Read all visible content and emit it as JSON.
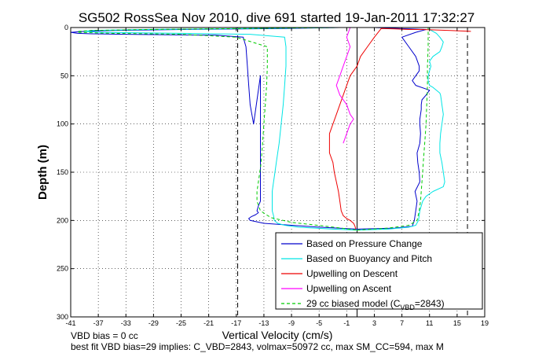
{
  "chart_data": {
    "type": "line",
    "title": "SG502 RossSea Nov 2010, dive 691 started 19-Jan-2011 17:32:27",
    "xlabel": "Vertical Velocity (cm/s)",
    "ylabel": "Depth (m)",
    "xlim": [
      -41,
      19
    ],
    "ylim": [
      0,
      300
    ],
    "y_reversed": true,
    "grid": true,
    "x_ticks": [
      -41,
      -37,
      -33,
      -29,
      -25,
      -21,
      -17,
      -13,
      -9,
      -5,
      -1,
      3,
      7,
      11,
      15,
      19
    ],
    "y_ticks": [
      0,
      50,
      100,
      150,
      200,
      250,
      300
    ],
    "vertical_lines": [
      {
        "x": -16.8,
        "style": "dashed",
        "color": "#000000"
      },
      {
        "x": 0.5,
        "style": "solid",
        "color": "#000000"
      },
      {
        "x": 16.5,
        "style": "dashed",
        "color": "#000000"
      }
    ],
    "legend_position": "bottom-right",
    "series": [
      {
        "name": "Based on Pressure Change",
        "color": "#0000cc",
        "style": "solid",
        "segments": [
          {
            "x": [
              -2,
              -10,
              -25,
              -35,
              -39,
              -41,
              -40,
              -38,
              -33,
              -20,
              -16,
              -15.6,
              -15.4,
              -15.2,
              -15,
              -14.5,
              -13.5,
              -13.5,
              -13.5,
              -13.5,
              -13.5,
              -13.5,
              -13.5,
              -13.5,
              -13.5,
              -13.5,
              -13.8,
              -14,
              -13.8,
              -14.2,
              -14.8,
              -15.2,
              -15,
              -13,
              -5,
              0.5
            ],
            "y": [
              0,
              1,
              2,
              3,
              4,
              5,
              6,
              6.5,
              7,
              8,
              10,
              20,
              40,
              60,
              80,
              100,
              50,
              70,
              90,
              110,
              130,
              150,
              160,
              170,
              175,
              180,
              185,
              190,
              192,
              194,
              196,
              198,
              200,
              203,
              207,
              209
            ]
          },
          {
            "x": [
              0.5,
              6,
              8.5,
              8.8,
              9,
              9.2,
              8.9,
              9.6,
              9.5,
              9.3,
              9.2,
              9.6,
              9.7,
              9.6,
              9.6,
              9.7,
              9.8,
              9.8,
              9.9,
              10.5,
              11,
              9,
              8.5,
              9,
              9.5,
              9.5,
              9,
              8,
              7,
              9,
              10.5,
              3
            ],
            "y": [
              209,
              208,
              206,
              200,
              190,
              180,
              170,
              160,
              150,
              140,
              130,
              120,
              110,
              100,
              95,
              90,
              85,
              80,
              75,
              70,
              65,
              60,
              55,
              50,
              45,
              40,
              30,
              20,
              10,
              5,
              2,
              0
            ]
          }
        ]
      },
      {
        "name": "Based on Buoyancy and Pitch",
        "color": "#00e5e5",
        "style": "solid",
        "segments": [
          {
            "x": [
              -2,
              -15,
              -30,
              -38,
              -39,
              -37,
              -25,
              -15,
              -10,
              -9.8,
              -9.8,
              -10,
              -10.2,
              -10.5,
              -10.8,
              -11.2,
              -11.4,
              -11.6,
              -11.8,
              -11.8,
              -11.8,
              -11.6,
              -11.5,
              -11,
              -10,
              -8,
              -3,
              0.5
            ],
            "y": [
              0,
              1,
              2,
              3,
              4,
              5,
              6,
              7,
              10,
              20,
              40,
              60,
              80,
              100,
              120,
              140,
              150,
              160,
              170,
              180,
              190,
              195,
              200,
              203,
              205,
              207,
              209,
              210
            ]
          },
          {
            "x": [
              0.5,
              5,
              8,
              9,
              9.4,
              9.6,
              10,
              10.5,
              11.5,
              13,
              13.2,
              13,
              12.8,
              12.5,
              12.5,
              12.6,
              12.8,
              13,
              12.8,
              12.7,
              12.6,
              12.5,
              12,
              11.5,
              11,
              10.8,
              10.8,
              11,
              11.2,
              11,
              11.5,
              12.5,
              12.8,
              13,
              12.5,
              12,
              11.5,
              11,
              11
            ],
            "y": [
              210,
              209,
              207,
              205,
              200,
              190,
              180,
              175,
              170,
              165,
              160,
              150,
              140,
              130,
              120,
              110,
              100,
              90,
              80,
              75,
              70,
              68,
              65,
              62,
              60,
              55,
              50,
              45,
              40,
              35,
              30,
              25,
              20,
              15,
              10,
              6,
              4,
              2,
              0
            ]
          }
        ]
      },
      {
        "name": "Upwelling on Descent",
        "color": "#ee0000",
        "style": "solid",
        "segments": [
          {
            "x": [
              17,
              14,
              12,
              10,
              8,
              6,
              4,
              3,
              2,
              1,
              0.5,
              -0.5,
              -1,
              -1.5,
              -2,
              -2.5,
              -3,
              -3.5,
              -3.5,
              -3.5,
              -3,
              -2.8,
              -2.5,
              -2.2,
              -2,
              -1.8,
              -1.5,
              -1,
              -0.5,
              0,
              0.2,
              0.3
            ],
            "y": [
              4,
              3,
              2.5,
              2,
              2,
              1.5,
              1,
              10,
              20,
              30,
              40,
              50,
              60,
              70,
              80,
              90,
              100,
              110,
              120,
              130,
              140,
              150,
              160,
              170,
              180,
              190,
              195,
              198,
              200,
              203,
              206,
              209
            ]
          }
        ]
      },
      {
        "name": "Upwelling on Ascent",
        "color": "#ff00ff",
        "style": "solid",
        "segments": [
          {
            "x": [
              -0.5,
              -1,
              -0.5,
              -1,
              -1.5,
              -2,
              -2.5,
              -2,
              -1,
              -0.5,
              0,
              -0.5,
              -1,
              -1.5
            ],
            "y": [
              0,
              10,
              20,
              30,
              40,
              50,
              60,
              70,
              80,
              90,
              95,
              100,
              110,
              120
            ]
          }
        ]
      },
      {
        "name": "29 cc biased model (C",
        "name_sub": "VBD",
        "name_suffix": "=2843)",
        "color": "#00cc00",
        "style": "dashed",
        "segments": [
          {
            "x": [
              -2,
              -15,
              -30,
              -38,
              -40,
              -40,
              -35,
              -25,
              -17,
              -12.5,
              -12.5,
              -12.6,
              -12.8,
              -13,
              -13.2,
              -13.4,
              -13.6,
              -13.8,
              -14,
              -14,
              -13.5,
              -12,
              -9,
              -4,
              0.5
            ],
            "y": [
              0,
              1,
              2,
              3,
              4,
              5,
              6,
              7,
              10,
              20,
              40,
              60,
              80,
              100,
              120,
              140,
              150,
              160,
              170,
              180,
              190,
              197,
              202,
              206,
              210
            ]
          },
          {
            "x": [
              0.5,
              5,
              8,
              9.2,
              9.5,
              9.7,
              9.8,
              9.9,
              10,
              10.1,
              10.2,
              10.3,
              10.4,
              10.5,
              10.6,
              10.7,
              10.7,
              10.8,
              10.8,
              10.8
            ],
            "y": [
              210,
              208,
              205,
              200,
              190,
              180,
              170,
              160,
              150,
              140,
              130,
              120,
              110,
              100,
              80,
              60,
              40,
              20,
              10,
              0
            ]
          }
        ]
      }
    ],
    "annotations": [
      "VBD bias = 0 cc",
      "best fit VBD bias=29 implies: C_VBD=2843, volmax=50972 cc, max SM_CC=594, max M"
    ]
  }
}
